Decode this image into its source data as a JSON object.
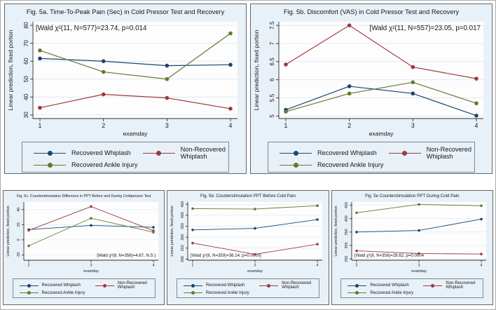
{
  "figure": {
    "description": "Five-panel statistical line chart figure (cold pressor test study)",
    "colors": {
      "navy": "#1a476f",
      "maroon": "#9e393d",
      "olive": "#65792c",
      "panel_bg": "#e9f1f8",
      "grid": "#dce7f0"
    }
  },
  "chart_data": [
    {
      "id": "fig-5a",
      "type": "line",
      "title": "Fig. 5a. Time-To-Peak Pain (Sec) in Cold Pressor Test and Recovery",
      "annotation": {
        "text": "[Wald χ²(11, N=577)=23.74, p=0.014",
        "position": "top-left"
      },
      "xlabel": "examday",
      "ylabel": "Linear prediction, fixed portion",
      "x": [
        1,
        2,
        3,
        4
      ],
      "yticks": [
        30,
        40,
        50,
        60,
        70,
        80
      ],
      "ylim": [
        28,
        82
      ],
      "grid": true,
      "legend_position": "bottom",
      "series": [
        {
          "name": "Recovered Whiplash",
          "color": "#1a476f",
          "values": [
            61.5,
            60,
            57.5,
            58
          ]
        },
        {
          "name": "Non-Recovered Whiplash",
          "color": "#9e393d",
          "values": [
            34,
            41.5,
            39.5,
            33.5
          ]
        },
        {
          "name": "Recovered Ankle Injury",
          "color": "#65792c",
          "values": [
            66,
            54,
            50,
            75.5
          ]
        }
      ]
    },
    {
      "id": "fig-5b",
      "type": "line",
      "title": "Fig. 5b. Discomfort (VAS) in Cold Pressor Test and Recovery",
      "annotation": {
        "text": "[Wald χ²(11, N=557)=23.05, p=0.017",
        "position": "top-right"
      },
      "xlabel": "examday",
      "ylabel": "Linear prediction, fixed portion",
      "x": [
        1,
        2,
        3,
        4
      ],
      "yticks": [
        5,
        5.5,
        6,
        6.5,
        7,
        7.5
      ],
      "ylim": [
        4.93,
        7.6
      ],
      "grid": true,
      "legend_position": "bottom",
      "series": [
        {
          "name": "Recovered Whiplash",
          "color": "#1a476f",
          "values": [
            5.17,
            5.82,
            5.62,
            5.01
          ]
        },
        {
          "name": "Non-Recovered Whiplash",
          "color": "#9e393d",
          "values": [
            6.42,
            7.5,
            6.35,
            6.03
          ]
        },
        {
          "name": "Recovered Ankle Injury",
          "color": "#65792c",
          "values": [
            5.12,
            5.62,
            5.93,
            5.35
          ]
        }
      ]
    },
    {
      "id": "fig-5c",
      "type": "line",
      "title": "Fig. 5c. Counterstimulation Difference in PPT Before and During Coldpressor Test",
      "annotation": {
        "text": "[Wald χ²(8, N=358)=4.87, N.S.]",
        "position": "bottom-right"
      },
      "xlabel": "examday",
      "ylabel": "Linear prediction, fixed portion",
      "x": [
        2,
        3,
        4
      ],
      "yticks": [
        -20,
        0,
        20,
        40
      ],
      "ylim": [
        -27,
        50
      ],
      "grid": true,
      "legend_position": "bottom",
      "series": [
        {
          "name": "Recovered Whiplash",
          "color": "#1a476f",
          "values": [
            13.5,
            19,
            16.5
          ]
        },
        {
          "name": "Non-Recovered Whiplash",
          "color": "#9e393d",
          "values": [
            12.5,
            44,
            12
          ]
        },
        {
          "name": "Recovered Ankle Injury",
          "color": "#65792c",
          "values": [
            -8,
            28.5,
            10
          ]
        }
      ]
    },
    {
      "id": "fig-5d",
      "type": "line",
      "title": "Fig. 5d. Counterstimulation PPT Before Cold Pain",
      "annotation": {
        "text": "[Wald χ²(8, N=359)=36.14, p=0.0000]",
        "position": "bottom-left"
      },
      "xlabel": "examday",
      "ylabel": "Linear prediction, fixed portion",
      "x": [
        2,
        3,
        4
      ],
      "yticks": [
        200,
        250,
        300,
        350,
        400,
        450
      ],
      "ylim": [
        195,
        460
      ],
      "grid": true,
      "legend_position": "bottom",
      "series": [
        {
          "name": "Recovered Whiplash",
          "color": "#1a476f",
          "values": [
            333,
            340,
            380
          ]
        },
        {
          "name": "Non-Recovered Whiplash",
          "color": "#9e393d",
          "values": [
            273,
            222,
            268
          ]
        },
        {
          "name": "Recovered Ankle Injury",
          "color": "#65792c",
          "values": [
            430,
            428,
            443
          ]
        }
      ]
    },
    {
      "id": "fig-5e",
      "type": "line",
      "title": "Fig. 5e Counterstimulation PPT During Cold Pain",
      "annotation": {
        "text": "[Wald χ²(8, N=358)=28.62, p=0.0004",
        "position": "bottom-left"
      },
      "xlabel": "examday",
      "ylabel": "Linear prediction, fixed portion",
      "x": [
        2,
        3,
        4
      ],
      "yticks": [
        250,
        300,
        350,
        400,
        450
      ],
      "ylim": [
        245,
        462
      ],
      "grid": true,
      "legend_position": "bottom",
      "series": [
        {
          "name": "Recovered Whiplash",
          "color": "#1a476f",
          "values": [
            350,
            356,
            398
          ]
        },
        {
          "name": "Non-Recovered Whiplash",
          "color": "#9e393d",
          "values": [
            280,
            270,
            268
          ]
        },
        {
          "name": "Recovered Ankle Injury",
          "color": "#65792c",
          "values": [
            422,
            453,
            448
          ]
        }
      ]
    }
  ]
}
